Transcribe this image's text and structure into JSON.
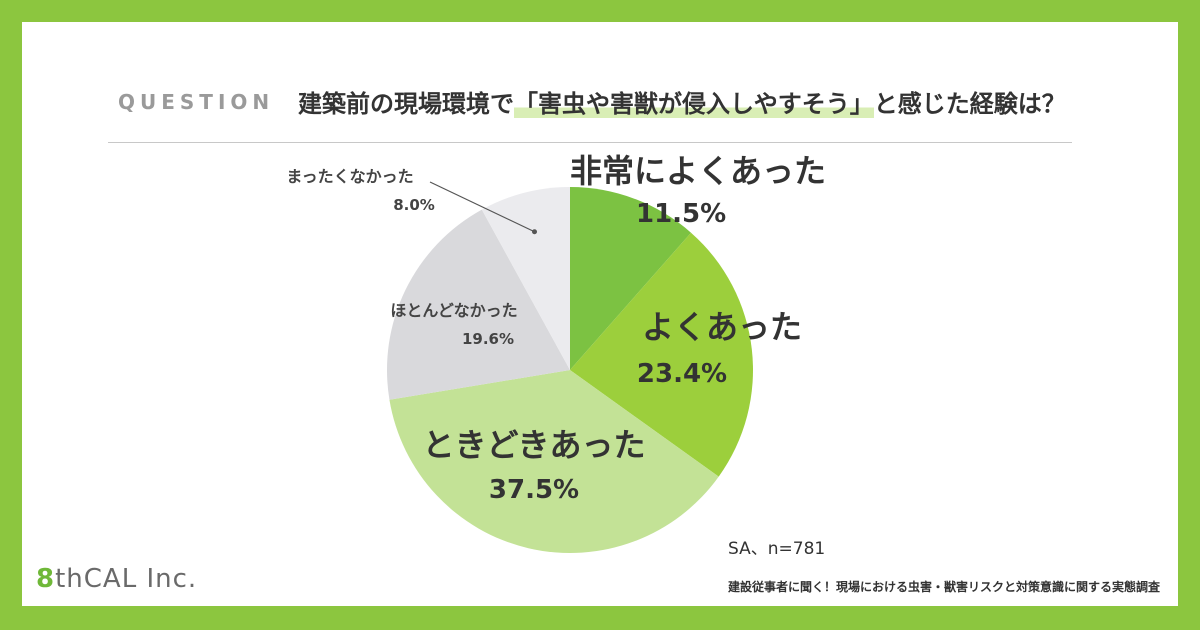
{
  "header": {
    "question_label": "QUESTION",
    "title_before": "建築前の現場環境で",
    "title_highlight": "「害虫や害獣が侵入しやすそう」",
    "title_after": "と感じた経験は？"
  },
  "chart_data": {
    "type": "pie",
    "unit": "%",
    "labels": [
      "非常によくあった",
      "よくあった",
      "ときどきあった",
      "ほとんどなかった",
      "まったくなかった"
    ],
    "values": [
      11.5,
      23.4,
      37.5,
      19.6,
      8.0
    ],
    "value_labels": [
      "11.5%",
      "23.4%",
      "37.5%",
      "19.6%",
      "8.0%"
    ],
    "colors": [
      "#7cc242",
      "#9ccf3c",
      "#c3e296",
      "#d9d9dc",
      "#ebebee"
    ],
    "start_angle_deg": 0,
    "direction": "clockwise"
  },
  "note": "SA、n=781",
  "footer": {
    "logo_mark": "8",
    "logo_text": "thCAL",
    "logo_suffix": "Inc.",
    "survey_title": "建設従事者に聞く！現場における虫害・獣害リスクと対策意識に関する実態調査"
  }
}
